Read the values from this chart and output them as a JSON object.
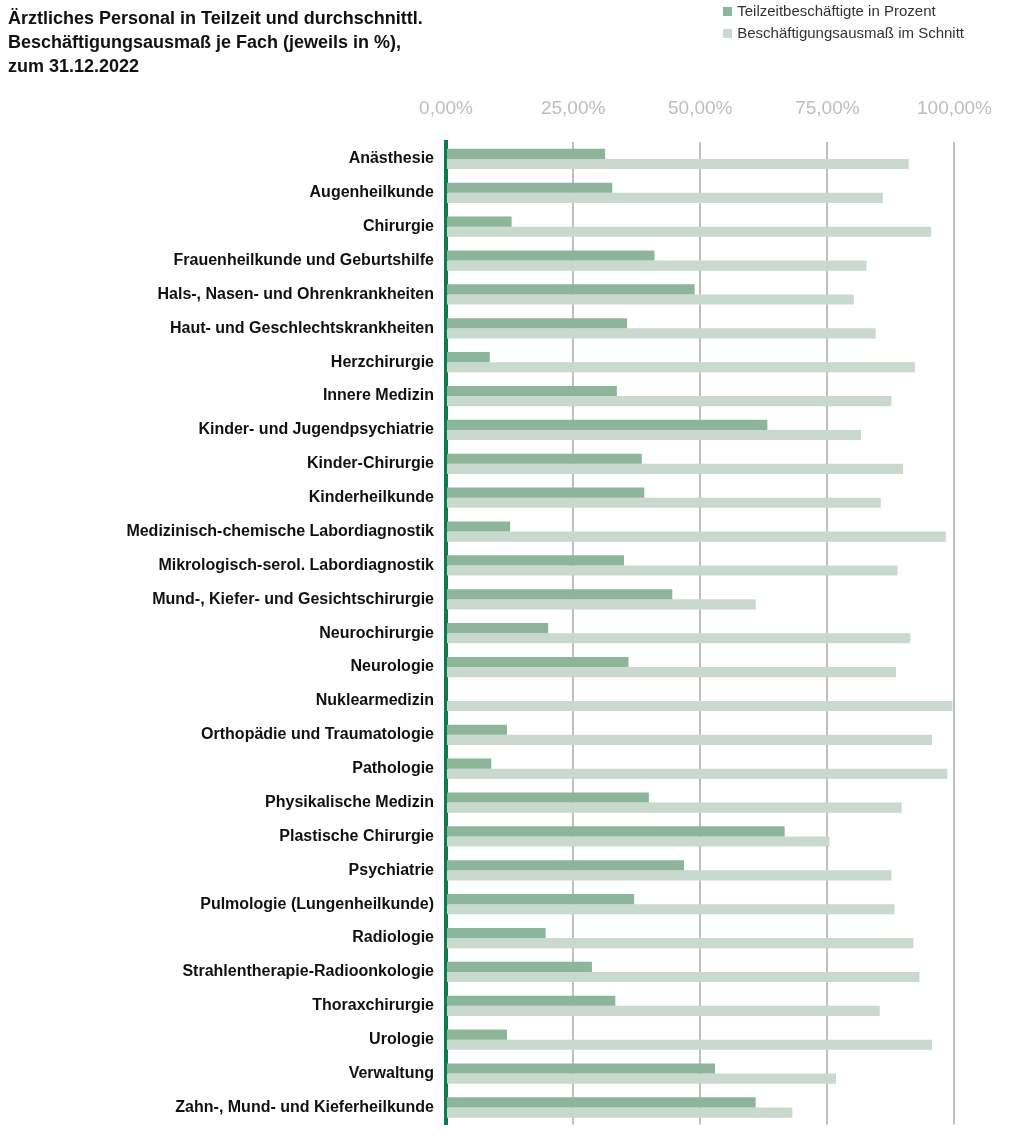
{
  "chart_data": {
    "type": "bar",
    "orientation": "horizontal",
    "title": "Ärztliches Personal in Teilzeit und durchschnittl.\nBeschäftigungsausmaß je Fach (jeweils in %),\nzum 31.12.2022",
    "categories": [
      "Anästhesie",
      "Augenheilkunde",
      "Chirurgie",
      "Frauenheilkunde und Geburtshilfe",
      "Hals-, Nasen- und Ohrenkrankheiten",
      "Haut- und Geschlechtskrankheiten",
      "Herzchirurgie",
      "Innere Medizin",
      "Kinder- und Jugendpsychiatrie",
      "Kinder-Chirurgie",
      "Kinderheilkunde",
      "Medizinisch-chemische Labordiagnostik",
      "Mikrologisch-serol. Labordiagnostik",
      "Mund-, Kiefer- und Gesichtschirurgie",
      "Neurochirurgie",
      "Neurologie",
      "Nuklearmedizin",
      "Orthopädie und Traumatologie",
      "Pathologie",
      "Physikalische Medizin",
      "Plastische Chirurgie",
      "Psychiatrie",
      "Pulmologie (Lungenheilkunde)",
      "Radiologie",
      "Strahlentherapie-Radioonkologie",
      "Thoraxchirurgie",
      "Urologie",
      "Verwaltung",
      "Zahn-, Mund- und Kieferheilkunde"
    ],
    "series": [
      {
        "name": "Teilzeitbeschäftigte in Prozent",
        "color": "#8db59a",
        "values": [
          31.3,
          32.7,
          12.9,
          41.0,
          48.9,
          35.6,
          8.6,
          33.6,
          63.2,
          38.5,
          39.0,
          12.6,
          35.0,
          44.5,
          20.1,
          35.9,
          0,
          12.0,
          8.9,
          39.9,
          66.6,
          46.8,
          37.0,
          19.6,
          28.7,
          33.3,
          12.0,
          52.9,
          60.9
        ]
      },
      {
        "name": "Beschäftigungsausmaß im Schnitt",
        "color": "#c9d9cd",
        "values": [
          91.0,
          85.9,
          95.4,
          82.7,
          80.2,
          84.5,
          92.2,
          87.6,
          81.6,
          89.9,
          85.5,
          98.3,
          88.8,
          60.9,
          91.3,
          88.5,
          99.6,
          95.6,
          98.6,
          89.6,
          75.4,
          87.6,
          88.2,
          91.9,
          93.1,
          85.3,
          95.6,
          76.7,
          68.1
        ]
      }
    ],
    "xlim": [
      0,
      100
    ],
    "xticks": [
      {
        "value": 0,
        "label": "0,00%"
      },
      {
        "value": 25,
        "label": "25,00%"
      },
      {
        "value": 50,
        "label": "50,00%"
      },
      {
        "value": 75,
        "label": "75,00%"
      },
      {
        "value": 100,
        "label": "100,00%"
      }
    ],
    "grid": "x",
    "legend": "top right"
  }
}
